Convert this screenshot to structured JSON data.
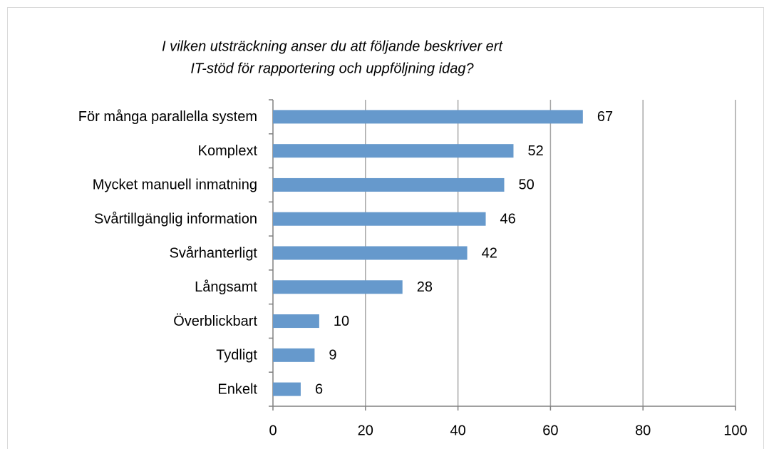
{
  "chart_data": {
    "type": "bar",
    "orientation": "horizontal",
    "title": [
      "I vilken utsträckning anser du att följande beskriver ert",
      "IT-stöd för rapportering och uppföljning idag?"
    ],
    "categories": [
      "För många parallella system",
      "Komplext",
      "Mycket manuell inmatning",
      "Svårtillgänglig information",
      "Svårhanterligt",
      "Långsamt",
      "Överblickbart",
      "Tydligt",
      "Enkelt"
    ],
    "values": [
      67,
      52,
      50,
      46,
      42,
      28,
      10,
      9,
      6
    ],
    "color": "#6699cc",
    "xlim": [
      0,
      100
    ],
    "xticks": [
      0,
      20,
      40,
      60,
      80,
      100
    ],
    "grid": true
  }
}
